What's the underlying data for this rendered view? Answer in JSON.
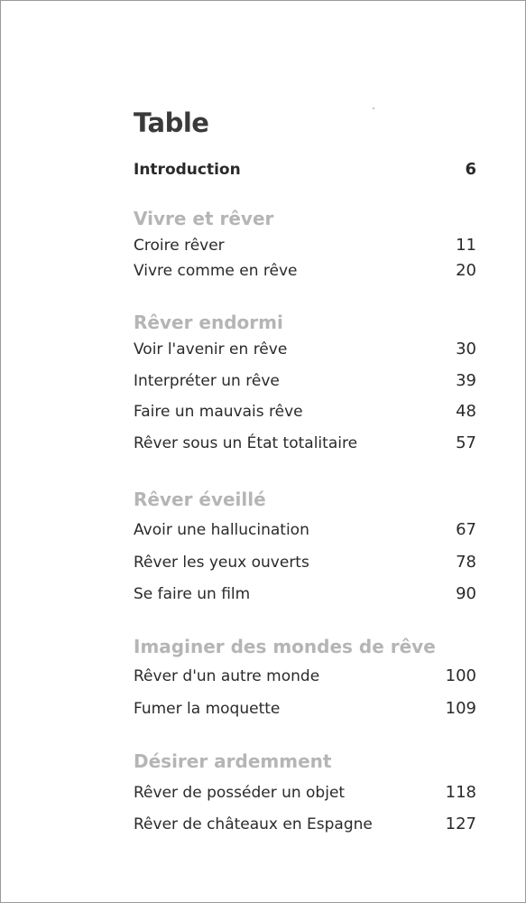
{
  "toc": {
    "title": "Table",
    "intro": {
      "label": "Introduction",
      "page": "6"
    },
    "sections": [
      {
        "heading": "Vivre et rêver",
        "entries": [
          {
            "label": "Croire rêver",
            "page": "11"
          },
          {
            "label": "Vivre comme en rêve",
            "page": "20"
          }
        ]
      },
      {
        "heading": "Rêver endormi",
        "entries": [
          {
            "label": "Voir l'avenir en rêve",
            "page": "30"
          },
          {
            "label": "Interpréter un rêve",
            "page": "39"
          },
          {
            "label": "Faire un mauvais rêve",
            "page": "48"
          },
          {
            "label": "Rêver sous un État totalitaire",
            "page": "57"
          }
        ]
      },
      {
        "heading": "Rêver éveillé",
        "entries": [
          {
            "label": "Avoir une hallucination",
            "page": "67"
          },
          {
            "label": "Rêver les yeux ouverts",
            "page": "78"
          },
          {
            "label": "Se faire un film",
            "page": "90"
          }
        ]
      },
      {
        "heading": "Imaginer des mondes de rêve",
        "entries": [
          {
            "label": "Rêver d'un autre monde",
            "page": "100"
          },
          {
            "label": "Fumer la moquette",
            "page": "109"
          }
        ]
      },
      {
        "heading": "Désirer ardemment",
        "entries": [
          {
            "label": "Rêver de posséder un objet",
            "page": "118"
          },
          {
            "label": "Rêver de châteaux en Espagne",
            "page": "127"
          }
        ]
      }
    ]
  }
}
